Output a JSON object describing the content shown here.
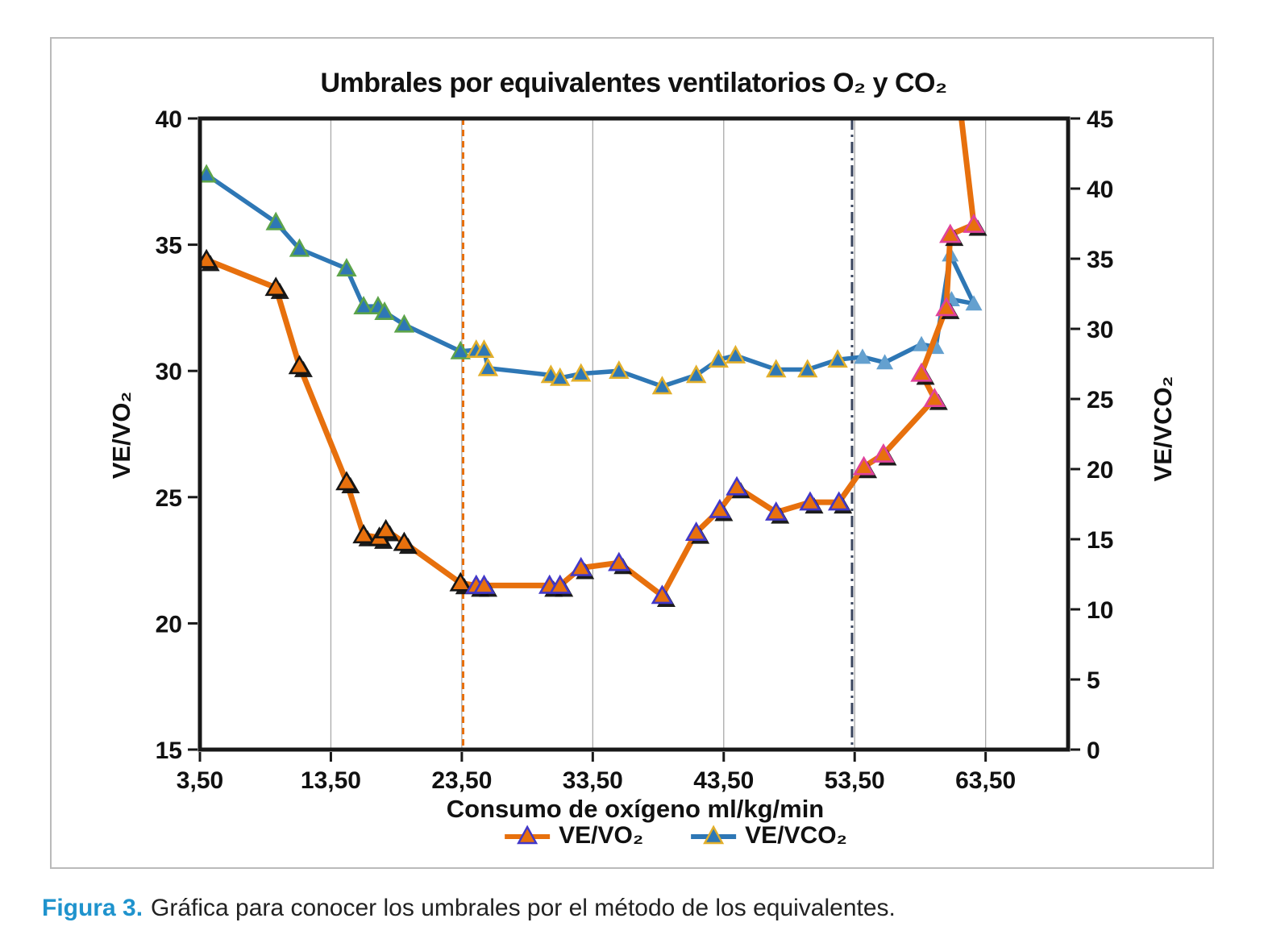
{
  "figure": {
    "caption_label": "Figura 3.",
    "caption_text": "Gráfica para conocer los umbrales por el método de los equivalentes.",
    "caption_label_color": "#1f93cd"
  },
  "chart_data": {
    "type": "line",
    "title": "Umbrales por equivalentes ventilatorios O₂ y CO₂",
    "x_axis": {
      "label": "Consumo de oxígeno ml/kg/min",
      "min": 3.5,
      "max": 69.8,
      "tick_values": [
        3.5,
        13.5,
        23.5,
        33.5,
        43.5,
        53.5,
        63.5
      ],
      "tick_labels": [
        "3,50",
        "13,50",
        "23,50",
        "33,50",
        "43,50",
        "53,50",
        "63,50"
      ]
    },
    "left_axis": {
      "label": "VE/VO₂",
      "min": 15,
      "max": 40,
      "ticks": [
        40,
        35,
        30,
        25,
        20,
        15
      ]
    },
    "right_axis": {
      "label": "VE/VCO₂",
      "min": 0,
      "max": 45,
      "ticks": [
        45,
        40,
        35,
        30,
        25,
        20,
        15,
        10,
        5,
        0
      ]
    },
    "grid": {
      "vertical_x": [
        13.5,
        23.5,
        33.5,
        43.5,
        53.5,
        63.5
      ],
      "color": "#a9a9a9",
      "horizontal": false
    },
    "threshold_lines": [
      {
        "x": 23.6,
        "color": "#e7700d",
        "style": "dashed"
      },
      {
        "x": 53.3,
        "color": "#39455e",
        "style": "dash-dot"
      }
    ],
    "phase_boundaries": [
      23.5,
      53.5
    ],
    "series": [
      {
        "name": "VE/VCO₂",
        "axis": "right",
        "color": "#2e77b5",
        "line_width": 5.5,
        "shadow": false,
        "marker_edge_phases": [
          "#5da44a",
          "#e2af2b",
          "none"
        ],
        "marker_fill_phases": [
          "#2e77b5",
          "#2e77b5",
          "#64a0cf"
        ],
        "points": [
          [
            4.0,
            41.0
          ],
          [
            9.3,
            37.6
          ],
          [
            11.1,
            35.7
          ],
          [
            14.7,
            34.3
          ],
          [
            16.0,
            31.6
          ],
          [
            17.1,
            31.6
          ],
          [
            17.6,
            31.2
          ],
          [
            19.1,
            30.3
          ],
          [
            23.4,
            28.4
          ],
          [
            24.6,
            28.5
          ],
          [
            25.2,
            28.5
          ],
          [
            25.5,
            27.2
          ],
          [
            30.3,
            26.7
          ],
          [
            31.0,
            26.5
          ],
          [
            32.6,
            26.8
          ],
          [
            35.5,
            27.0
          ],
          [
            38.8,
            25.9
          ],
          [
            41.4,
            26.7
          ],
          [
            43.1,
            27.8
          ],
          [
            44.4,
            28.1
          ],
          [
            47.5,
            27.1
          ],
          [
            49.9,
            27.1
          ],
          [
            52.2,
            27.8
          ],
          [
            54.1,
            28.0
          ],
          [
            55.8,
            27.6
          ],
          [
            58.6,
            28.9
          ],
          [
            59.7,
            28.7
          ],
          [
            60.8,
            35.3
          ],
          [
            62.6,
            31.8
          ],
          [
            60.9,
            32.1
          ]
        ]
      },
      {
        "name": "VE/VO₂",
        "axis": "left",
        "color": "#e7700d",
        "line_width": 7,
        "shadow": true,
        "marker_edge_phases": [
          "#151515",
          "#4238c8",
          "#e0439b"
        ],
        "marker_fill_phases": [
          "#e7700d",
          "#e7700d",
          "#e7700d"
        ],
        "points": [
          [
            4.0,
            34.4
          ],
          [
            9.3,
            33.3
          ],
          [
            11.1,
            30.2
          ],
          [
            14.7,
            25.6
          ],
          [
            16.0,
            23.5
          ],
          [
            17.2,
            23.4
          ],
          [
            17.7,
            23.7
          ],
          [
            19.1,
            23.2
          ],
          [
            23.4,
            21.6
          ],
          [
            24.6,
            21.5
          ],
          [
            25.2,
            21.5
          ],
          [
            30.2,
            21.5
          ],
          [
            31.0,
            21.5
          ],
          [
            32.6,
            22.2
          ],
          [
            35.5,
            22.4
          ],
          [
            38.8,
            21.1
          ],
          [
            41.4,
            23.6
          ],
          [
            43.2,
            24.5
          ],
          [
            44.5,
            25.4
          ],
          [
            47.5,
            24.4
          ],
          [
            50.1,
            24.8
          ],
          [
            52.3,
            24.8
          ],
          [
            54.2,
            26.2
          ],
          [
            55.7,
            26.7
          ],
          [
            59.6,
            28.9
          ],
          [
            58.6,
            29.9
          ],
          [
            60.5,
            32.5
          ],
          [
            60.8,
            35.4
          ],
          [
            62.6,
            35.8
          ],
          [
            61.2,
            42.0
          ]
        ]
      }
    ]
  }
}
